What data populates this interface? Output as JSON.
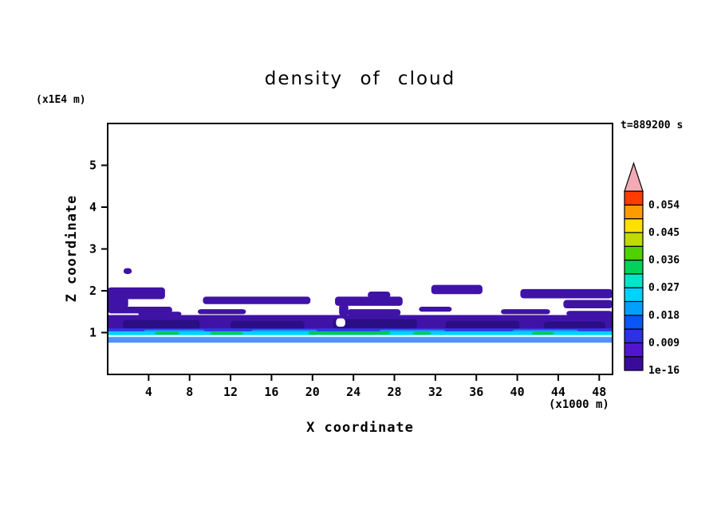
{
  "chart_data": {
    "type": "contour",
    "title": "density of cloud",
    "xlabel": "X coordinate",
    "ylabel": "Z coordinate",
    "x_unit": "(x1000 m)",
    "y_unit": "(x1E4 m)",
    "time_label": "t=889200 s",
    "xlim": [
      0,
      49.3
    ],
    "ylim": [
      0,
      6
    ],
    "x_ticks": [
      4,
      8,
      12,
      16,
      20,
      24,
      28,
      32,
      36,
      40,
      44,
      48
    ],
    "y_ticks": [
      1,
      2,
      3,
      4,
      5
    ],
    "grid": false,
    "legend_position": "right-colorbar",
    "colorbar": {
      "labels": [
        {
          "text": "0.054",
          "index": 12
        },
        {
          "text": "0.045",
          "index": 10
        },
        {
          "text": "0.036",
          "index": 8
        },
        {
          "text": "0.027",
          "index": 6
        },
        {
          "text": "0.018",
          "index": 4
        },
        {
          "text": "0.009",
          "index": 2
        },
        {
          "text": "1e-16",
          "index": 0
        }
      ],
      "colors": [
        "#3a0b9b",
        "#5215cf",
        "#2f2fe8",
        "#0a55f5",
        "#00a0ff",
        "#00d2ff",
        "#00e6c8",
        "#00d25a",
        "#50d200",
        "#bedc00",
        "#ffe100",
        "#ff9b00",
        "#ff3c00"
      ],
      "over_color": "#f2aab4"
    },
    "palette": {
      "violet": "#3f13a6",
      "violet2": "#2b0d84",
      "blue": "#2f3ae8",
      "azure": "#1a8cff",
      "cyan": "#00d2ff",
      "green": "#00c850",
      "paleblue": "#5a8cff",
      "white": "#ffffff"
    },
    "bands": [
      {
        "c": "violet",
        "x0": 0,
        "x1": 5.6,
        "z0": 1.8,
        "z1": 2.08
      },
      {
        "c": "violet",
        "x0": 0,
        "x1": 2.0,
        "z0": 1.58,
        "z1": 1.86
      },
      {
        "c": "violet",
        "x0": 1.55,
        "x1": 2.35,
        "z0": 2.4,
        "z1": 2.54
      },
      {
        "c": "violet",
        "x0": 9.3,
        "x1": 19.8,
        "z0": 1.68,
        "z1": 1.86
      },
      {
        "c": "violet",
        "x0": 22.2,
        "x1": 28.8,
        "z0": 1.64,
        "z1": 1.86
      },
      {
        "c": "violet",
        "x0": 25.4,
        "x1": 27.6,
        "z0": 1.82,
        "z1": 1.98
      },
      {
        "c": "violet",
        "x0": 31.6,
        "x1": 36.6,
        "z0": 1.92,
        "z1": 2.14
      },
      {
        "c": "violet",
        "x0": 40.3,
        "x1": 49.3,
        "z0": 1.82,
        "z1": 2.04
      },
      {
        "c": "violet",
        "x0": 44.5,
        "x1": 49.3,
        "z0": 1.58,
        "z1": 1.78
      },
      {
        "c": "violet",
        "x0": 0,
        "x1": 6.3,
        "z0": 1.46,
        "z1": 1.62
      },
      {
        "c": "violet",
        "x0": 8.8,
        "x1": 13.5,
        "z0": 1.44,
        "z1": 1.56
      },
      {
        "c": "violet",
        "x0": 30.4,
        "x1": 33.6,
        "z0": 1.5,
        "z1": 1.62
      },
      {
        "c": "violet",
        "x0": 38.4,
        "x1": 43.2,
        "z0": 1.44,
        "z1": 1.56
      },
      {
        "c": "violet",
        "x0": 22.6,
        "x1": 23.5,
        "z0": 1.4,
        "z1": 1.68
      },
      {
        "c": "violet",
        "x0": 0,
        "x1": 49.3,
        "z0": 1.0,
        "z1": 1.42,
        "r": 0
      },
      {
        "c": "violet",
        "x0": 23.4,
        "x1": 28.6,
        "z0": 1.4,
        "z1": 1.56
      },
      {
        "c": "violet",
        "x0": 3.0,
        "x1": 7.2,
        "z0": 1.4,
        "z1": 1.5
      },
      {
        "c": "violet",
        "x0": 44.8,
        "x1": 49.3,
        "z0": 1.4,
        "z1": 1.52
      },
      {
        "c": "violet2",
        "x0": 1.5,
        "x1": 9.0,
        "z0": 1.06,
        "z1": 1.3
      },
      {
        "c": "violet2",
        "x0": 12.0,
        "x1": 19.2,
        "z0": 1.06,
        "z1": 1.28
      },
      {
        "c": "violet2",
        "x0": 22.0,
        "x1": 30.2,
        "z0": 1.08,
        "z1": 1.32
      },
      {
        "c": "violet2",
        "x0": 33.0,
        "x1": 40.2,
        "z0": 1.06,
        "z1": 1.28
      },
      {
        "c": "violet2",
        "x0": 42.6,
        "x1": 48.6,
        "z0": 1.06,
        "z1": 1.26
      },
      {
        "c": "white",
        "x0": 22.3,
        "x1": 23.2,
        "z0": 1.14,
        "z1": 1.34
      },
      {
        "c": "blue",
        "x0": 0,
        "x1": 49.3,
        "z0": 0.97,
        "z1": 1.1,
        "r": 0
      },
      {
        "c": "azure",
        "x0": 3.5,
        "x1": 9.5,
        "z0": 0.96,
        "z1": 1.07
      },
      {
        "c": "azure",
        "x0": 14.0,
        "x1": 20.5,
        "z0": 0.96,
        "z1": 1.07
      },
      {
        "c": "azure",
        "x0": 26.5,
        "x1": 33.0,
        "z0": 0.96,
        "z1": 1.07
      },
      {
        "c": "azure",
        "x0": 39.5,
        "x1": 46.0,
        "z0": 0.96,
        "z1": 1.07
      },
      {
        "c": "cyan",
        "x0": 0,
        "x1": 49.3,
        "z0": 0.94,
        "z1": 1.03,
        "r": 0
      },
      {
        "c": "green",
        "x0": 4.6,
        "x1": 7.0,
        "z0": 0.95,
        "z1": 1.02
      },
      {
        "c": "green",
        "x0": 10.0,
        "x1": 13.2,
        "z0": 0.95,
        "z1": 1.02
      },
      {
        "c": "green",
        "x0": 19.6,
        "x1": 27.6,
        "z0": 0.95,
        "z1": 1.03
      },
      {
        "c": "green",
        "x0": 29.8,
        "x1": 31.6,
        "z0": 0.95,
        "z1": 1.02
      },
      {
        "c": "green",
        "x0": 41.4,
        "x1": 43.6,
        "z0": 0.95,
        "z1": 1.02
      },
      {
        "c": "cyan",
        "x0": 0,
        "x1": 49.3,
        "z0": 0.85,
        "z1": 0.9,
        "r": 0
      },
      {
        "c": "paleblue",
        "x0": 0,
        "x1": 49.3,
        "z0": 0.76,
        "z1": 0.87,
        "r": 0
      }
    ]
  }
}
